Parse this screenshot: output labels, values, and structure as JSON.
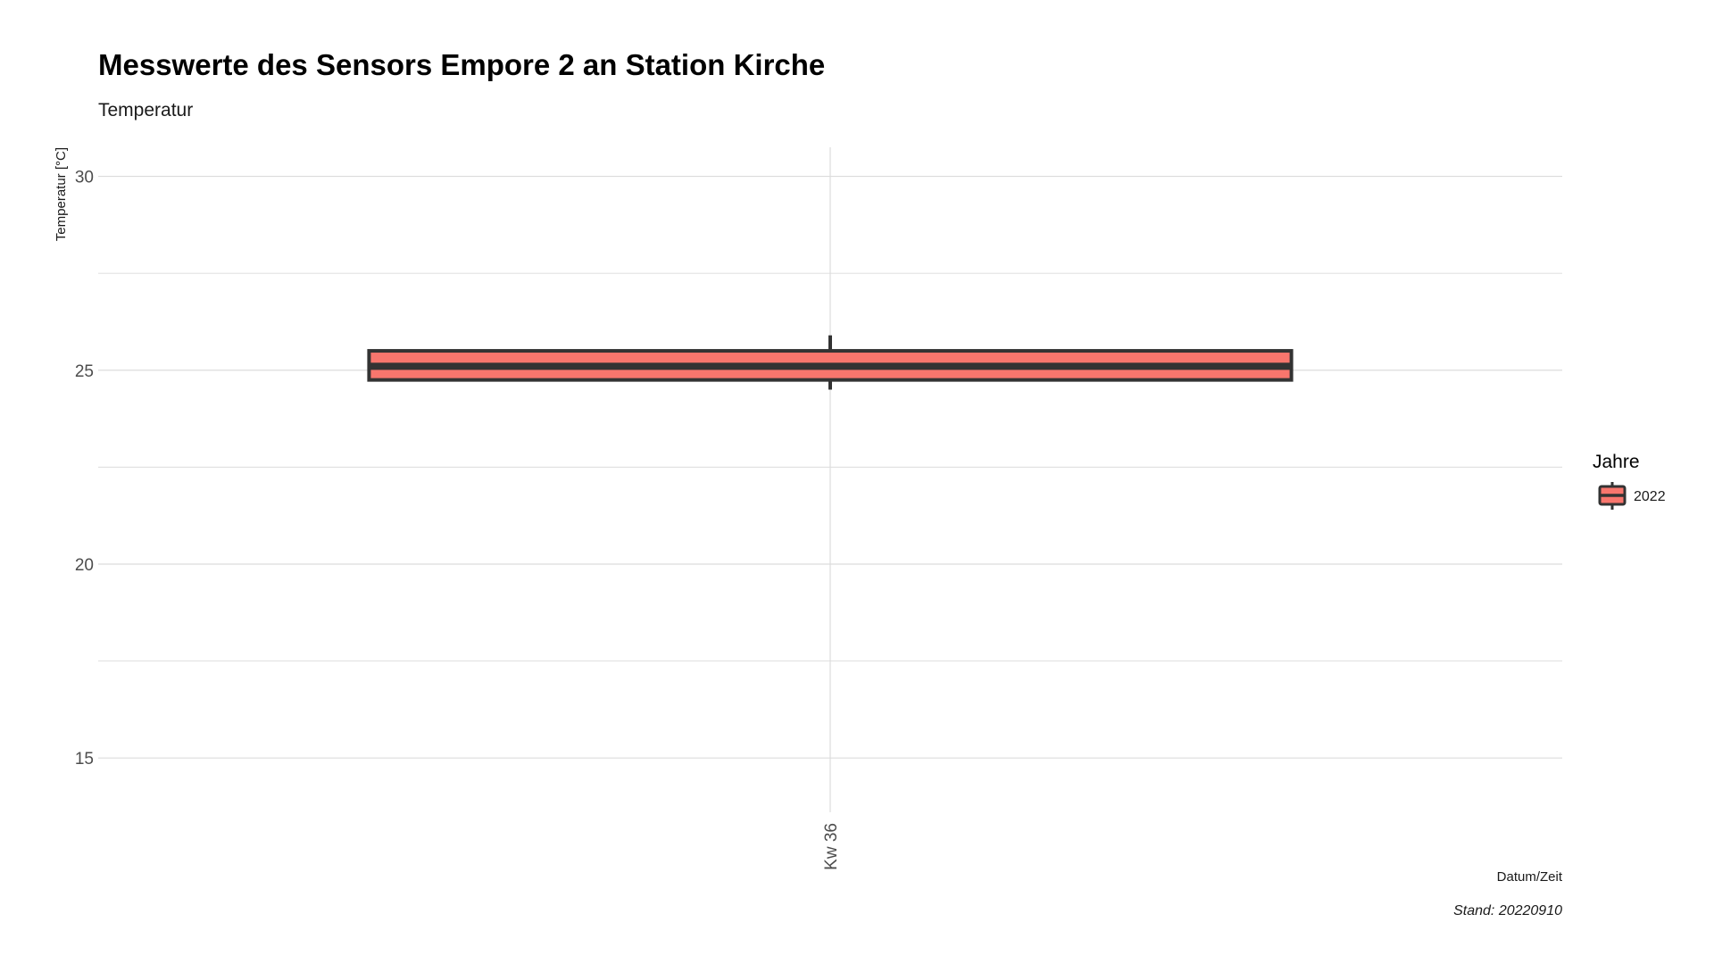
{
  "chart_data": {
    "type": "boxplot",
    "title": "Messwerte des Sensors Empore 2 an Station Kirche",
    "subtitle": "Temperatur",
    "xlabel": "Datum/Zeit",
    "ylabel": "Temperatur [°C]",
    "caption": "Stand: 20220910",
    "categories": [
      "Kw 36"
    ],
    "y_ticks": [
      15,
      20,
      25,
      30
    ],
    "ylim": [
      13.6,
      30.75
    ],
    "grid": true,
    "legend": {
      "title": "Jahre",
      "position": "right",
      "entries": [
        "2022"
      ]
    },
    "series": [
      {
        "name": "2022",
        "color": "#f8766d",
        "boxes": [
          {
            "category": "Kw 36",
            "whisker_low": 24.5,
            "q1": 24.75,
            "median": 25.1,
            "q3": 25.5,
            "whisker_high": 25.9
          }
        ]
      }
    ]
  },
  "colors": {
    "box_fill": "#f8766d",
    "box_outline": "#333333",
    "grid": "#dcdcdc",
    "tick_text": "#4d4d4d"
  }
}
